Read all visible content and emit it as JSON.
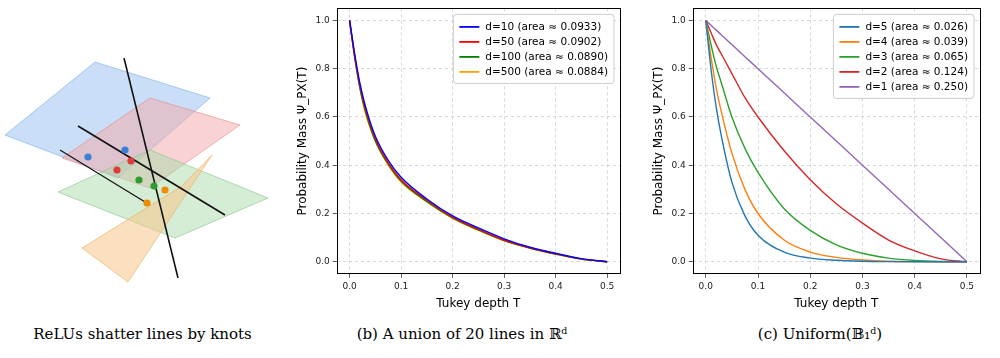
{
  "diagram": {
    "caption": "ReLUs shatter lines by knots"
  },
  "chart_data": [
    {
      "type": "line",
      "title": "(b) A union of 20 lines in ℝᵈ",
      "x_label": "Tukey depth T",
      "y_label": "Probability Mass Ψ_PX(T)",
      "x": [
        0,
        0.01,
        0.02,
        0.03,
        0.05,
        0.075,
        0.1,
        0.15,
        0.2,
        0.25,
        0.3,
        0.35,
        0.4,
        0.45,
        0.5
      ],
      "series": [
        {
          "name": "d=10 (area ≈ 0.0933)",
          "color": "#0000ff",
          "values": [
            1.0,
            0.86,
            0.74,
            0.65,
            0.52,
            0.42,
            0.35,
            0.26,
            0.19,
            0.14,
            0.095,
            0.06,
            0.035,
            0.013,
            0.0
          ]
        },
        {
          "name": "d=50 (area ≈ 0.0902)",
          "color": "#ff0000",
          "values": [
            1.0,
            0.85,
            0.73,
            0.64,
            0.51,
            0.41,
            0.34,
            0.255,
            0.185,
            0.135,
            0.09,
            0.058,
            0.033,
            0.012,
            0.0
          ]
        },
        {
          "name": "d=100 (area ≈ 0.0890)",
          "color": "#008000",
          "values": [
            1.0,
            0.85,
            0.72,
            0.63,
            0.5,
            0.405,
            0.335,
            0.25,
            0.182,
            0.132,
            0.088,
            0.057,
            0.032,
            0.011,
            0.0
          ]
        },
        {
          "name": "d=500 (area ≈ 0.0884)",
          "color": "#ffa500",
          "values": [
            1.0,
            0.84,
            0.72,
            0.62,
            0.5,
            0.4,
            0.33,
            0.248,
            0.18,
            0.13,
            0.087,
            0.056,
            0.031,
            0.011,
            0.0
          ]
        }
      ],
      "xlim": [
        -0.025,
        0.525
      ],
      "xticks": [
        {
          "value": 0,
          "label": "0.0"
        },
        {
          "value": 0.1,
          "label": "0.1"
        },
        {
          "value": 0.2,
          "label": "0.2"
        },
        {
          "value": 0.3,
          "label": "0.3"
        },
        {
          "value": 0.4,
          "label": "0.4"
        },
        {
          "value": 0.5,
          "label": "0.5"
        }
      ],
      "ylim": [
        -0.05,
        1.05
      ],
      "yticks": [
        {
          "value": 0,
          "label": "0.0"
        },
        {
          "value": 0.2,
          "label": "0.2"
        },
        {
          "value": 0.4,
          "label": "0.4"
        },
        {
          "value": 0.6,
          "label": "0.6"
        },
        {
          "value": 0.8,
          "label": "0.8"
        },
        {
          "value": 1,
          "label": "1.0"
        }
      ],
      "grid": true,
      "legend": "upper right"
    },
    {
      "type": "line",
      "title": "(c) Uniform(𝔹₁ᵈ)",
      "x_label": "Tukey depth T",
      "y_label": "Probability Mass Ψ_PX(T)",
      "x": [
        0,
        0.01,
        0.02,
        0.03,
        0.05,
        0.075,
        0.1,
        0.15,
        0.2,
        0.25,
        0.3,
        0.35,
        0.4,
        0.45,
        0.5
      ],
      "series": [
        {
          "name": "d=5 (area ≈ 0.026)",
          "color": "#1f77b4",
          "values": [
            1.0,
            0.8,
            0.64,
            0.52,
            0.33,
            0.19,
            0.11,
            0.04,
            0.015,
            0.006,
            0.002,
            0.0005,
            0.0,
            0.0,
            0.0
          ]
        },
        {
          "name": "d=4 (area ≈ 0.039)",
          "color": "#ff7f0e",
          "values": [
            1.0,
            0.85,
            0.72,
            0.62,
            0.45,
            0.3,
            0.2,
            0.09,
            0.04,
            0.018,
            0.007,
            0.002,
            0.0005,
            0.0,
            0.0
          ]
        },
        {
          "name": "d=3 (area ≈ 0.065)",
          "color": "#2ca02c",
          "values": [
            1.0,
            0.9,
            0.81,
            0.74,
            0.6,
            0.47,
            0.37,
            0.22,
            0.13,
            0.07,
            0.035,
            0.015,
            0.005,
            0.001,
            0.0
          ]
        },
        {
          "name": "d=2 (area ≈ 0.124)",
          "color": "#d62728",
          "values": [
            1.0,
            0.95,
            0.9,
            0.86,
            0.78,
            0.68,
            0.6,
            0.46,
            0.34,
            0.24,
            0.16,
            0.09,
            0.045,
            0.012,
            0.0
          ]
        },
        {
          "name": "d=1 (area ≈ 0.250)",
          "color": "#9467bd",
          "values": [
            1.0,
            0.98,
            0.96,
            0.94,
            0.9,
            0.85,
            0.8,
            0.7,
            0.6,
            0.5,
            0.4,
            0.3,
            0.2,
            0.1,
            0.0
          ]
        }
      ],
      "xlim": [
        -0.025,
        0.525
      ],
      "xticks": [
        {
          "value": 0,
          "label": "0.0"
        },
        {
          "value": 0.1,
          "label": "0.1"
        },
        {
          "value": 0.2,
          "label": "0.2"
        },
        {
          "value": 0.3,
          "label": "0.3"
        },
        {
          "value": 0.4,
          "label": "0.4"
        },
        {
          "value": 0.5,
          "label": "0.5"
        }
      ],
      "ylim": [
        -0.05,
        1.05
      ],
      "yticks": [
        {
          "value": 0,
          "label": "0.0"
        },
        {
          "value": 0.2,
          "label": "0.2"
        },
        {
          "value": 0.4,
          "label": "0.4"
        },
        {
          "value": 0.6,
          "label": "0.6"
        },
        {
          "value": 0.8,
          "label": "0.8"
        },
        {
          "value": 1,
          "label": "1.0"
        }
      ],
      "grid": true,
      "legend": "upper right"
    }
  ]
}
